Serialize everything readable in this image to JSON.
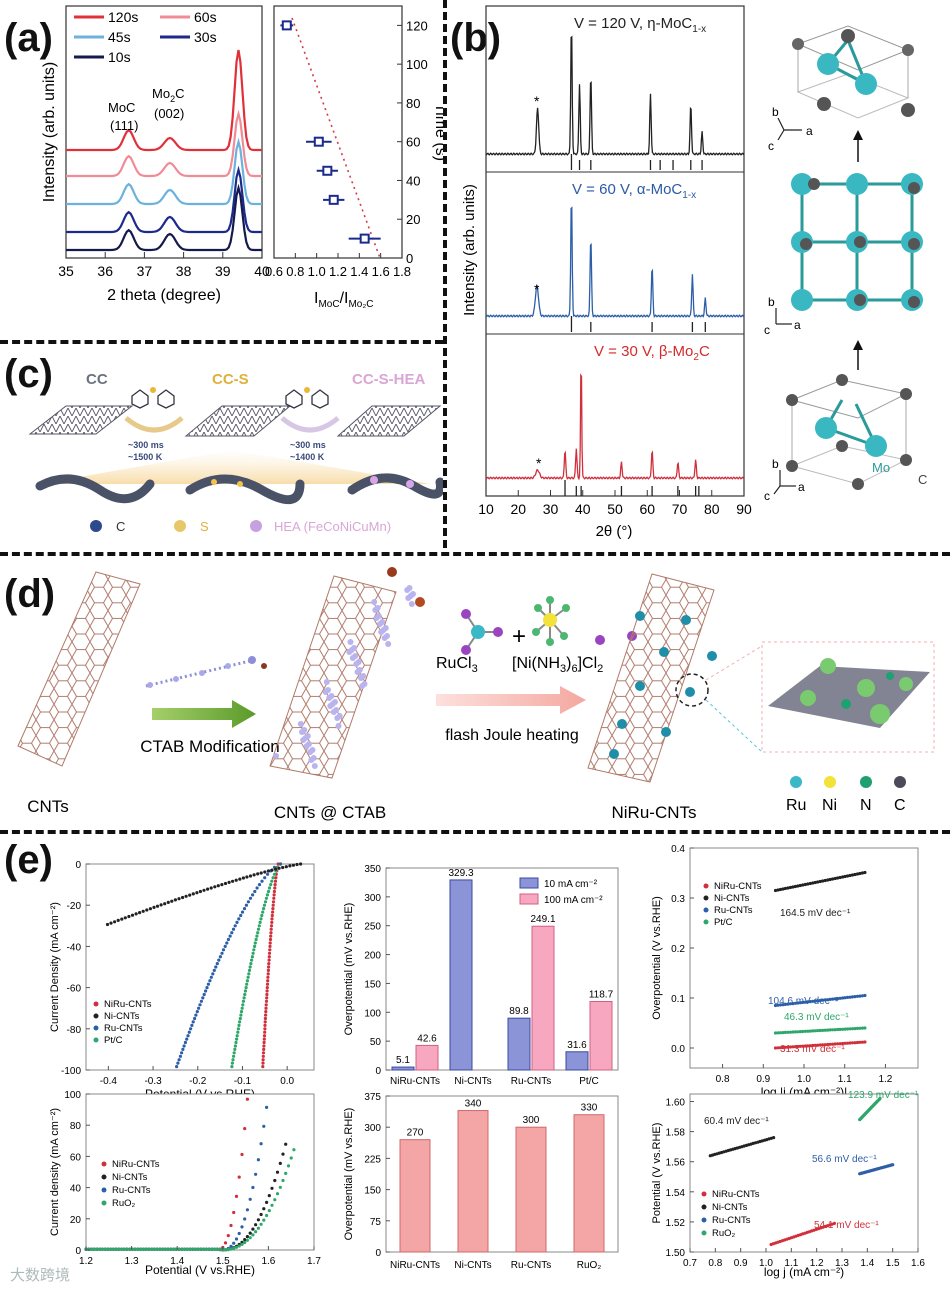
{
  "panels": {
    "a": "(a)",
    "b": "(b)",
    "c": "(c)",
    "d": "(d)",
    "e": "(e)"
  },
  "watermark": "大数跨境",
  "panel_a": {
    "legend": [
      "120s",
      "60s",
      "45s",
      "30s",
      "10s"
    ],
    "legend_colors": [
      "#e0303a",
      "#f08c96",
      "#6cb2dc",
      "#1c2a8c",
      "#151a4c"
    ],
    "peak_labels": {
      "moc": "MoC",
      "moc_idx": "(111)",
      "mo2c": "Mo",
      "mo2c_sub": "2",
      "mo2c_tail": "C",
      "mo2c_idx": "(002)"
    },
    "ylabel": "Intensity (arb. units)",
    "xlabel": "2 theta (degree)",
    "xticks": [
      "35",
      "36",
      "37",
      "38",
      "39",
      "40"
    ],
    "ratio_ylabel": "Time (s)",
    "ratio_yticks": [
      "0",
      "20",
      "40",
      "60",
      "80",
      "100",
      "120"
    ],
    "ratio_xticks": [
      "0.6",
      "0.8",
      "1.0",
      "1.2",
      "1.4",
      "1.6",
      "1.8"
    ],
    "ratio_xlabel": "I",
    "ratio_xlabel_sub1": "MoC",
    "ratio_xlabel_mid": "/I",
    "ratio_xlabel_sub2": "Mo₂C"
  },
  "panel_b": {
    "titles": [
      "V = 120 V, η-MoC",
      "V = 60 V, α-MoC",
      "V = 30 V, β-Mo"
    ],
    "title_subs": [
      "1-x",
      "1-x",
      "2"
    ],
    "title_tail": [
      "",
      "",
      "C"
    ],
    "title_colors": [
      "#222222",
      "#2b5aa8",
      "#d42a2a"
    ],
    "ylabel": "Intensity (arb. units)",
    "xlabel": "2θ (°)",
    "xticks": [
      "10",
      "20",
      "30",
      "40",
      "50",
      "60",
      "70",
      "80",
      "90"
    ],
    "star": "*",
    "axis_labels": {
      "a": "a",
      "b": "b",
      "c": "c",
      "mo": "Mo",
      "carbon": "C"
    }
  },
  "panel_c": {
    "labels": [
      "CC",
      "CC-S",
      "CC-S-HEA"
    ],
    "cond1": [
      "~300 ms",
      "~1500 K"
    ],
    "cond2": [
      "~300 ms",
      "~1400 K"
    ],
    "legend": [
      "C",
      "S",
      "HEA (FeCoNiCuMn)"
    ]
  },
  "panel_d": {
    "names": [
      "CNTs",
      "CNTs @ CTAB",
      "NiRu-CNTs"
    ],
    "step1": "CTAB Modification",
    "reagent1": "RuCl",
    "reagent1_sub": "3",
    "reagent2_pre": "[Ni(NH",
    "reagent2_sub1": "3",
    "reagent2_mid": ")",
    "reagent2_sub2": "6",
    "reagent2_tail": "]Cl",
    "reagent2_sub3": "2",
    "step2": "flash Joule heating",
    "plus": "+",
    "legend": [
      "Ru",
      "Ni",
      "N",
      "C"
    ]
  },
  "chart_data": [
    {
      "type": "bar",
      "id": "her-overpotential",
      "categories": [
        "NiRu-CNTs",
        "Ni-CNTs",
        "Ru-CNTs",
        "Pt/C"
      ],
      "series": [
        {
          "name": "10 mA cm⁻²",
          "values": [
            5.1,
            329.3,
            89.8,
            31.6
          ]
        },
        {
          "name": "100 mA cm⁻²",
          "values": [
            42.6,
            null,
            249.1,
            118.7
          ]
        }
      ],
      "data_labels": [
        [
          "5.1",
          "329.3",
          "89.8",
          "31.6"
        ],
        [
          "42.6",
          "",
          "249.1",
          "118.7"
        ]
      ],
      "ylabel": "Overpotential (mV vs.RHE)",
      "ylim": [
        0,
        350
      ],
      "yticks": [
        "0",
        "50",
        "100",
        "150",
        "200",
        "250",
        "300",
        "350"
      ]
    },
    {
      "type": "bar",
      "id": "oer-overpotential",
      "categories": [
        "NiRu-CNTs",
        "Ni-CNTs",
        "Ru-CNTs",
        "RuO₂"
      ],
      "values": [
        270,
        340,
        300,
        330
      ],
      "data_labels": [
        "270",
        "340",
        "300",
        "330"
      ],
      "ylabel": "Overpotential (mV vs.RHE)",
      "ylim": [
        0,
        375
      ],
      "yticks": [
        "0",
        "75",
        "150",
        "225",
        "300",
        "375"
      ]
    },
    {
      "type": "line",
      "id": "her-lsv",
      "ylabel": "Current Density (mA cm⁻²)",
      "xlabel": "Potential (V vs.RHE)",
      "xticks": [
        "-0.4",
        "-0.3",
        "-0.2",
        "-0.1",
        "0.0"
      ],
      "yticks": [
        "-100",
        "-80",
        "-60",
        "-40",
        "-20",
        "0"
      ],
      "legend": [
        "NiRu-CNTs",
        "Ni-CNTs",
        "Ru-CNTs",
        "Pt/C"
      ]
    },
    {
      "type": "scatter",
      "id": "her-tafel",
      "ylabel": "Overpotential (V vs.RHE)",
      "xlabel": "log |j (mA cm⁻²)|",
      "xticks": [
        "0.8",
        "0.9",
        "1.0",
        "1.1",
        "1.2"
      ],
      "yticks": [
        "0.0",
        "0.1",
        "0.2",
        "0.3",
        "0.4"
      ],
      "legend": [
        "NiRu-CNTs",
        "Ni-CNTs",
        "Ru-CNTs",
        "Pt/C"
      ],
      "slopes": [
        "164.5 mV dec⁻¹",
        "104.6 mV dec⁻¹",
        "46.3 mV dec⁻¹",
        "31.3 mV dec⁻¹"
      ]
    },
    {
      "type": "line",
      "id": "oer-lsv",
      "ylabel": "Current density (mA cm⁻²)",
      "xlabel": "Potential (V vs.RHE)",
      "xticks": [
        "1.2",
        "1.3",
        "1.4",
        "1.5",
        "1.6",
        "1.7"
      ],
      "yticks": [
        "0",
        "20",
        "40",
        "60",
        "80",
        "100"
      ],
      "legend": [
        "NiRu-CNTs",
        "Ni-CNTs",
        "Ru-CNTs",
        "RuO₂"
      ]
    },
    {
      "type": "scatter",
      "id": "oer-tafel",
      "ylabel": "Potential (V vs.RHE)",
      "xlabel": "log j (mA cm⁻²)",
      "xticks": [
        "0.7",
        "0.8",
        "0.9",
        "1.0",
        "1.1",
        "1.2",
        "1.3",
        "1.4",
        "1.5",
        "1.6"
      ],
      "yticks": [
        "1.50",
        "1.52",
        "1.54",
        "1.56",
        "1.58",
        "1.60"
      ],
      "legend": [
        "NiRu-CNTs",
        "Ni-CNTs",
        "Ru-CNTs",
        "RuO₂"
      ],
      "slopes": [
        "123.9 mV dec⁻¹",
        "60.4 mV dec⁻¹",
        "56.6 mV dec⁻¹",
        "54.1 mV dec⁻¹"
      ]
    }
  ],
  "colors": {
    "red": "#d0303c",
    "black": "#222222",
    "blue": "#2d5fa8",
    "green": "#2fa76a",
    "pink": "#f2a0b0",
    "navy": "#2a3a9a"
  }
}
